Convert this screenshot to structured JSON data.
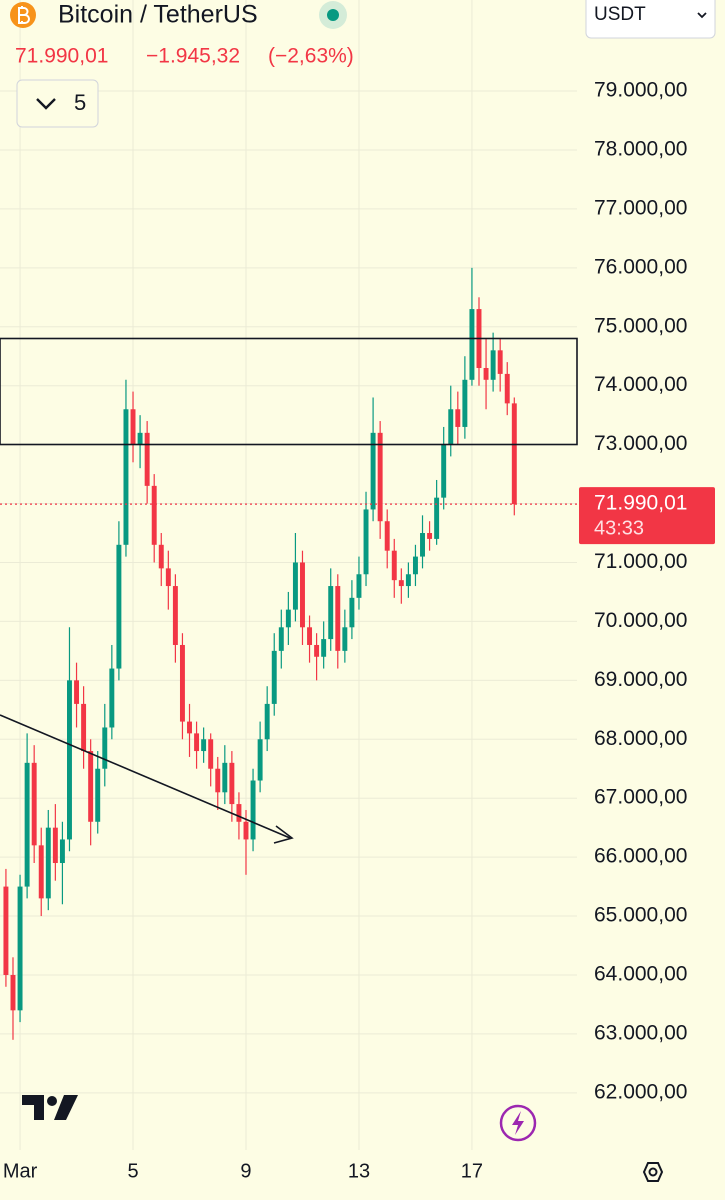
{
  "header": {
    "title": "Bitcoin / TetherUS",
    "price": "71.990,01",
    "change": "−1.945,32",
    "change_pct": "(−2,63%)",
    "interval": "5",
    "currency": "USDT"
  },
  "chart_data": {
    "type": "candlestick",
    "x": [
      0.5,
      0.75,
      1,
      1.25,
      1.5,
      1.75,
      2,
      2.25,
      2.5,
      2.75,
      3,
      3.25,
      3.5,
      3.75,
      4,
      4.25,
      4.5,
      4.75,
      5,
      5.25,
      5.5,
      5.75,
      6,
      6.25,
      6.5,
      6.75,
      7,
      7.25,
      7.5,
      7.75,
      8,
      8.25,
      8.5,
      8.75,
      9,
      9.25,
      9.5,
      9.75,
      10,
      10.25,
      10.5,
      10.75,
      11,
      11.25,
      11.5,
      11.75,
      12,
      12.25,
      12.5,
      12.75,
      13,
      13.25,
      13.5,
      13.75,
      14,
      14.25,
      14.5,
      14.75,
      15,
      15.25,
      15.5,
      15.75,
      16,
      16.25,
      16.5,
      16.75,
      17,
      17.25,
      17.5,
      17.75,
      18,
      18.25,
      18.5
    ],
    "open": [
      65500,
      64000,
      63400,
      65500,
      67600,
      66200,
      65300,
      66500,
      65900,
      66300,
      69000,
      68600,
      67800,
      66600,
      67500,
      68200,
      69200,
      71300,
      73600,
      73000,
      73200,
      72300,
      71300,
      70900,
      70600,
      69600,
      68300,
      68100,
      67800,
      68000,
      67500,
      67100,
      67600,
      66900,
      66600,
      66300,
      67300,
      68000,
      68600,
      69500,
      69900,
      70200,
      71000,
      69900,
      69600,
      69400,
      69700,
      70600,
      69500,
      69900,
      70400,
      70800,
      71900,
      73200,
      71700,
      71200,
      70700,
      70600,
      70800,
      71100,
      71500,
      71400,
      72100,
      73000,
      73600,
      73300,
      74100,
      75300,
      74300,
      74100,
      74600,
      74200,
      73700
    ],
    "high": [
      65800,
      64300,
      65700,
      68100,
      67900,
      66500,
      66800,
      66900,
      66600,
      69900,
      69300,
      68900,
      68000,
      67800,
      68600,
      69600,
      71700,
      74100,
      73900,
      73500,
      73400,
      72500,
      71500,
      71200,
      70800,
      69800,
      68600,
      68300,
      68200,
      68100,
      67700,
      67900,
      67800,
      67100,
      66800,
      67500,
      68300,
      68900,
      69800,
      70200,
      70500,
      71500,
      71200,
      70100,
      69800,
      70000,
      70900,
      70800,
      70200,
      70700,
      71100,
      72200,
      73800,
      73400,
      71900,
      71400,
      70900,
      71000,
      71300,
      71800,
      71700,
      72400,
      73300,
      74000,
      73900,
      74500,
      76000,
      75500,
      74800,
      74900,
      74800,
      74400,
      73800
    ],
    "low": [
      63800,
      62900,
      63200,
      65300,
      65900,
      65000,
      65100,
      65600,
      65200,
      66100,
      68200,
      67500,
      66200,
      66400,
      67200,
      68000,
      69000,
      71100,
      72700,
      72600,
      72000,
      71000,
      70600,
      70200,
      69300,
      68000,
      67700,
      67500,
      67600,
      67200,
      66800,
      66900,
      66600,
      66300,
      65700,
      66100,
      67100,
      67800,
      68400,
      69200,
      69600,
      70000,
      69600,
      69300,
      69000,
      69200,
      69500,
      69200,
      69300,
      69700,
      70200,
      70600,
      71700,
      71400,
      70900,
      70400,
      70300,
      70400,
      70600,
      70900,
      71200,
      71300,
      71900,
      72800,
      73000,
      73100,
      74000,
      74000,
      73600,
      73900,
      73900,
      73500,
      71800
    ],
    "close": [
      64000,
      63400,
      65500,
      67600,
      66200,
      65300,
      66500,
      65900,
      66300,
      69000,
      68600,
      67800,
      66600,
      67500,
      68200,
      69200,
      71300,
      73600,
      73000,
      73200,
      72300,
      71300,
      70900,
      70600,
      69600,
      68300,
      68100,
      67800,
      68000,
      67500,
      67100,
      67600,
      66900,
      66600,
      66300,
      67300,
      68000,
      68600,
      69500,
      69900,
      70200,
      71000,
      69900,
      69600,
      69400,
      69700,
      70600,
      69500,
      69900,
      70400,
      70800,
      71900,
      73200,
      71700,
      71200,
      70700,
      70600,
      70800,
      71100,
      71500,
      71400,
      72100,
      73000,
      73600,
      73300,
      74100,
      75300,
      74300,
      74100,
      74600,
      74200,
      73700,
      71990.01
    ],
    "up_color": "#089981",
    "down_color": "#f23645",
    "xlim": [
      0.29,
      20.72
    ],
    "xticks": [
      {
        "value": 1,
        "label": "Mar"
      },
      5,
      9,
      13,
      17
    ],
    "ylim": [
      61030,
      80545
    ],
    "yticks": [
      {
        "value": 62000,
        "label": "62.000,00"
      },
      {
        "value": 63000,
        "label": "63.000,00"
      },
      {
        "value": 64000,
        "label": "64.000,00"
      },
      {
        "value": 65000,
        "label": "65.000,00"
      },
      {
        "value": 66000,
        "label": "66.000,00"
      },
      {
        "value": 67000,
        "label": "67.000,00"
      },
      {
        "value": 68000,
        "label": "68.000,00"
      },
      {
        "value": 69000,
        "label": "69.000,00"
      },
      {
        "value": 70000,
        "label": "70.000,00"
      },
      {
        "value": 71000,
        "label": "71.000,00"
      },
      {
        "value": 72000,
        "label": "72.000,00"
      },
      {
        "value": 73000,
        "label": "73.000,00"
      },
      {
        "value": 74000,
        "label": "74.000,00"
      },
      {
        "value": 75000,
        "label": "75.000,00"
      },
      {
        "value": 76000,
        "label": "76.000,00"
      },
      {
        "value": 77000,
        "label": "77.000,00"
      },
      {
        "value": 78000,
        "label": "78.000,00"
      },
      {
        "value": 79000,
        "label": "79.000,00"
      }
    ],
    "current_price": {
      "value": 71990.01,
      "label": "71.990,01"
    },
    "countdown": "43:33",
    "grid": true
  }
}
